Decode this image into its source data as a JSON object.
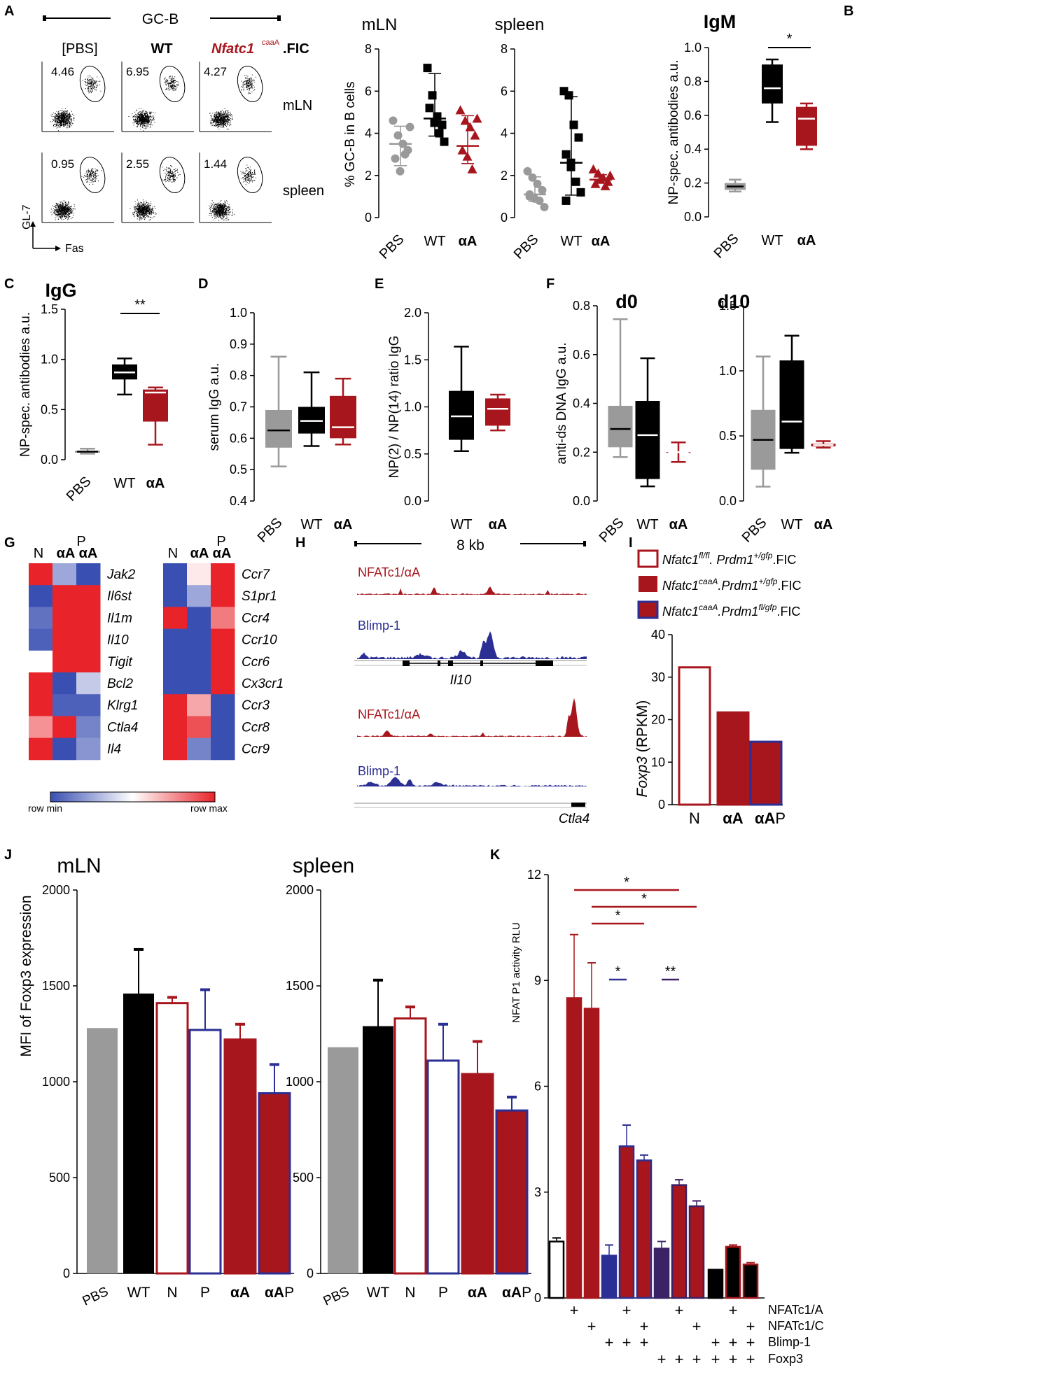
{
  "colors": {
    "grey": "#9a9a9a",
    "black": "#000000",
    "red": "#a8161d",
    "blue": "#2b2f94",
    "purple": "#3b2166",
    "heatRed": "#e8242a",
    "heatBlue": "#3a4fb2"
  },
  "panels": {
    "A": "A",
    "B": "B",
    "C": "C",
    "D": "D",
    "E": "E",
    "F": "F",
    "G": "G",
    "H": "H",
    "I": "I",
    "J": "J",
    "K": "K"
  },
  "panelA": {
    "gcb_label": "GC-B",
    "col_labels": [
      "[PBS]",
      "WT",
      "Nfatc1",
      "caaA",
      ".FIC"
    ],
    "row_labels": [
      "mLN",
      "spleen"
    ],
    "mln_values": [
      "4.46",
      "6.95",
      "4.27"
    ],
    "spleen_values": [
      "0.95",
      "2.55",
      "1.44"
    ],
    "y_axis": "GL-7",
    "x_axis": "Fas",
    "plot_titles": [
      "mLN",
      "spleen"
    ],
    "ylabel": "% GC-B in B cells"
  },
  "chart_data": [
    {
      "panel": "A",
      "type": "scatter",
      "title": "mLN",
      "ylabel": "% GC-B in B cells",
      "categories": [
        "PBS",
        "WT",
        "αA"
      ],
      "ylim": [
        0,
        8
      ],
      "ticks": [
        "0",
        "2",
        "4",
        "6",
        "8"
      ],
      "points": [
        [
          4.6,
          3.9,
          3.5,
          3.2,
          2.8,
          2.2,
          3.0,
          4.3
        ],
        [
          7.1,
          5.8,
          4.8,
          4.4,
          5.2,
          4.5,
          4.0,
          3.6
        ],
        [
          5.1,
          4.6,
          4.3,
          3.9,
          3.2,
          2.9,
          2.3,
          4.7
        ]
      ],
      "mean": [
        3.5,
        4.7,
        3.4
      ]
    },
    {
      "panel": "A",
      "type": "scatter",
      "title": "spleen",
      "categories": [
        "PBS",
        "WT",
        "αA"
      ],
      "ylim": [
        0,
        8
      ],
      "ticks": [
        "0",
        "2",
        "4",
        "6",
        "8"
      ],
      "points": [
        [
          2.2,
          1.9,
          1.6,
          1.3,
          1.1,
          0.9,
          0.8,
          0.5,
          1.0
        ],
        [
          6.0,
          5.8,
          4.4,
          3.8,
          3.0,
          2.4,
          1.7,
          1.2,
          0.8,
          2.6
        ],
        [
          2.3,
          2.1,
          1.9,
          1.7,
          1.6,
          1.8,
          1.5,
          2.0
        ]
      ],
      "mean": [
        1.1,
        2.6,
        1.8
      ]
    },
    {
      "panel": "B",
      "type": "box",
      "title": "IgM",
      "ylabel": "NP-spec. antibodies  a.u.",
      "categories": [
        "PBS",
        "WT",
        "αA"
      ],
      "ylim": [
        0,
        1.0
      ],
      "ticks": [
        "0.0",
        "0.2",
        "0.4",
        "0.6",
        "0.8",
        "1.0"
      ],
      "boxes": [
        [
          0.15,
          0.16,
          0.18,
          0.2,
          0.22
        ],
        [
          0.56,
          0.67,
          0.76,
          0.9,
          0.93
        ],
        [
          0.4,
          0.42,
          0.58,
          0.65,
          0.67
        ]
      ],
      "sig": "*"
    },
    {
      "panel": "C",
      "type": "box",
      "title": "IgG",
      "ylabel": "NP-spec. antibodies  a.u.",
      "categories": [
        "PBS",
        "WT",
        "αA"
      ],
      "ylim": [
        0,
        1.5
      ],
      "ticks": [
        "0.0",
        "0.5",
        "1.0",
        "1.5"
      ],
      "boxes": [
        [
          0.06,
          0.07,
          0.08,
          0.09,
          0.11
        ],
        [
          0.65,
          0.8,
          0.87,
          0.95,
          1.01
        ],
        [
          0.15,
          0.38,
          0.67,
          0.7,
          0.72
        ]
      ],
      "sig": "**"
    },
    {
      "panel": "D",
      "type": "box",
      "ylabel": "serum IgG a.u.",
      "categories": [
        "PBS",
        "WT",
        "αA"
      ],
      "ylim": [
        0.4,
        1.0
      ],
      "ticks": [
        "0.4",
        "0.5",
        "0.6",
        "0.7",
        "0.8",
        "0.9",
        "1.0"
      ],
      "boxes": [
        [
          0.51,
          0.57,
          0.625,
          0.69,
          0.86
        ],
        [
          0.575,
          0.615,
          0.655,
          0.7,
          0.81
        ],
        [
          0.58,
          0.6,
          0.635,
          0.735,
          0.79
        ]
      ]
    },
    {
      "panel": "E",
      "type": "box",
      "ylabel": "NP(2) / NP(14) ratio IgG",
      "categories": [
        "WT",
        "αA"
      ],
      "ylim": [
        0,
        2.0
      ],
      "ticks": [
        "0.0",
        "0.5",
        "1.0",
        "1.5",
        "2.0"
      ],
      "boxes": [
        [
          0.53,
          0.65,
          0.9,
          1.17,
          1.64
        ],
        [
          0.75,
          0.8,
          0.98,
          1.09,
          1.13
        ]
      ]
    },
    {
      "panel": "F",
      "type": "box",
      "title": "d0",
      "ylabel": "anti-ds DNA IgG a.u.",
      "categories": [
        "PBS",
        "WT",
        "αA"
      ],
      "ylim": [
        0,
        0.8
      ],
      "ticks": [
        "0.0",
        "0.2",
        "0.4",
        "0.6",
        "0.8"
      ],
      "boxes": [
        [
          0.18,
          0.22,
          0.295,
          0.39,
          0.745
        ],
        [
          0.06,
          0.09,
          0.27,
          0.41,
          0.585
        ],
        [
          0.16,
          0.2,
          0.2,
          0.2,
          0.24
        ]
      ]
    },
    {
      "panel": "F",
      "type": "box",
      "title": "d10",
      "categories": [
        "PBS",
        "WT",
        "αA"
      ],
      "ylim": [
        0,
        1.5
      ],
      "ticks": [
        "0.0",
        "0.5",
        "1.0",
        "1.5"
      ],
      "boxes": [
        [
          0.11,
          0.24,
          0.47,
          0.7,
          1.11
        ],
        [
          0.37,
          0.4,
          0.61,
          1.08,
          1.27
        ],
        [
          0.41,
          0.42,
          0.43,
          0.44,
          0.46
        ]
      ]
    },
    {
      "panel": "I",
      "type": "bar",
      "ylabel": "Foxp3 (RPKM)",
      "categories": [
        "N",
        "αA",
        "αAP"
      ],
      "values": [
        32.3,
        21.7,
        14.8
      ],
      "ylim": [
        0,
        40
      ],
      "ticks": [
        "0",
        "10",
        "20",
        "30",
        "40"
      ]
    },
    {
      "panel": "J",
      "type": "bar",
      "title": "mLN",
      "ylabel": "MFI of Foxp3 expression",
      "categories": [
        "PBS",
        "WT",
        "N",
        "P",
        "αA",
        "αAP"
      ],
      "values": [
        1280,
        1460,
        1410,
        1270,
        1220,
        940
      ],
      "errors": [
        0,
        230,
        30,
        210,
        80,
        150
      ],
      "ylim": [
        0,
        2000
      ],
      "ticks": [
        "0",
        "500",
        "1000",
        "1500",
        "2000"
      ]
    },
    {
      "panel": "J",
      "type": "bar",
      "title": "spleen",
      "categories": [
        "PBS",
        "WT",
        "N",
        "P",
        "αA",
        "αAP"
      ],
      "values": [
        1180,
        1290,
        1330,
        1110,
        1040,
        850
      ],
      "errors": [
        0,
        240,
        60,
        190,
        170,
        70
      ],
      "ylim": [
        0,
        2000
      ],
      "ticks": [
        "0",
        "500",
        "1000",
        "1500",
        "2000"
      ]
    },
    {
      "panel": "K",
      "type": "bar",
      "ylabel": "NFAT P1 activity RLU",
      "values": [
        1.6,
        8.5,
        8.2,
        1.2,
        4.3,
        3.9,
        1.4,
        3.2,
        2.6,
        0.8,
        1.45,
        0.95
      ],
      "errors": [
        0.1,
        1.8,
        1.3,
        0.3,
        0.6,
        0.15,
        0.2,
        0.15,
        0.15,
        0,
        0.05,
        0.05
      ],
      "ylim": [
        0,
        12
      ],
      "ticks": [
        "0",
        "3",
        "6",
        "9",
        "12"
      ],
      "conditions": [
        "NFATc1/A",
        "NFATc1/C",
        "Blimp-1",
        "Foxp3"
      ],
      "matrix": [
        [
          0,
          1,
          0,
          0,
          1,
          0,
          0,
          1,
          0,
          0,
          1,
          0
        ],
        [
          0,
          0,
          1,
          0,
          0,
          1,
          0,
          0,
          1,
          0,
          0,
          1
        ],
        [
          0,
          0,
          0,
          1,
          1,
          1,
          0,
          0,
          0,
          1,
          1,
          1
        ],
        [
          0,
          0,
          0,
          0,
          0,
          0,
          1,
          1,
          1,
          1,
          1,
          1
        ]
      ],
      "sigs": [
        "*",
        "*",
        "*",
        "*",
        "**"
      ]
    }
  ],
  "panelG": {
    "left_cols": [
      "N",
      "αA",
      "αA"
    ],
    "left_top": "P",
    "right_cols": [
      "N",
      "αA",
      "αA"
    ],
    "right_top": "P",
    "left_genes": [
      "Jak2",
      "Il6st",
      "Il1m",
      "Il10",
      "Tigit",
      "Bcl2",
      "Klrg1",
      "Ctla4",
      "Il4"
    ],
    "right_genes": [
      "Ccr7",
      "S1pr1",
      "Ccr4",
      "Ccr10",
      "Ccr6",
      "Cx3cr1",
      "Ccr3",
      "Ccr8",
      "Ccr9"
    ],
    "left_vals": [
      [
        1,
        0.25,
        0
      ],
      [
        0,
        1,
        1
      ],
      [
        0.1,
        1,
        1
      ],
      [
        0.05,
        1,
        1
      ],
      [
        0.5,
        1,
        1
      ],
      [
        1,
        0,
        0.35
      ],
      [
        1,
        0.05,
        0.05
      ],
      [
        0.75,
        1,
        0.15
      ],
      [
        1,
        0,
        0.2
      ]
    ],
    "right_vals": [
      [
        0,
        0.55,
        1
      ],
      [
        0,
        0.25,
        1
      ],
      [
        1,
        0,
        0.8
      ],
      [
        0,
        0,
        1
      ],
      [
        0,
        0,
        1
      ],
      [
        0,
        0,
        1
      ],
      [
        1,
        0.7,
        0
      ],
      [
        1,
        0.9,
        0
      ],
      [
        1,
        0.15,
        0
      ]
    ],
    "scale_min": "row min",
    "scale_max": "row max"
  },
  "panelH": {
    "scale": "8 kb",
    "track1": "NFATc1/αA",
    "track2": "Blimp-1",
    "gene1": "Il10",
    "gene2": "Ctla4"
  },
  "panelI": {
    "legend": [
      {
        "pre": "Nfatc1",
        "sup1": "fl/fl",
        "mid": ".  Prdm1",
        "sup2": "+/gfp",
        "post": ".FIC"
      },
      {
        "pre": "Nfatc1",
        "sup1": "caaA",
        "mid": ".Prdm1",
        "sup2": "+/gfp",
        "post": ".FIC"
      },
      {
        "pre": "Nfatc1",
        "sup1": "caaA",
        "mid": ".Prdm1",
        "sup2": "fl/gfp",
        "post": ".FIC"
      }
    ],
    "ylabel_gene": "Foxp3",
    "ylabel_unit": " (RPKM)",
    "xlabels": [
      "N",
      "αA",
      "αA",
      "P"
    ]
  },
  "panelJ": {
    "ylabel": "MFI of Foxp3 expression",
    "titles": [
      "mLN",
      "spleen"
    ],
    "xlabels": [
      "PBS",
      "WT",
      "N",
      "P",
      "αA",
      "αA",
      "P"
    ]
  },
  "panelK": {
    "ylabel": "NFAT P1 activity RLU",
    "sym": "+"
  }
}
